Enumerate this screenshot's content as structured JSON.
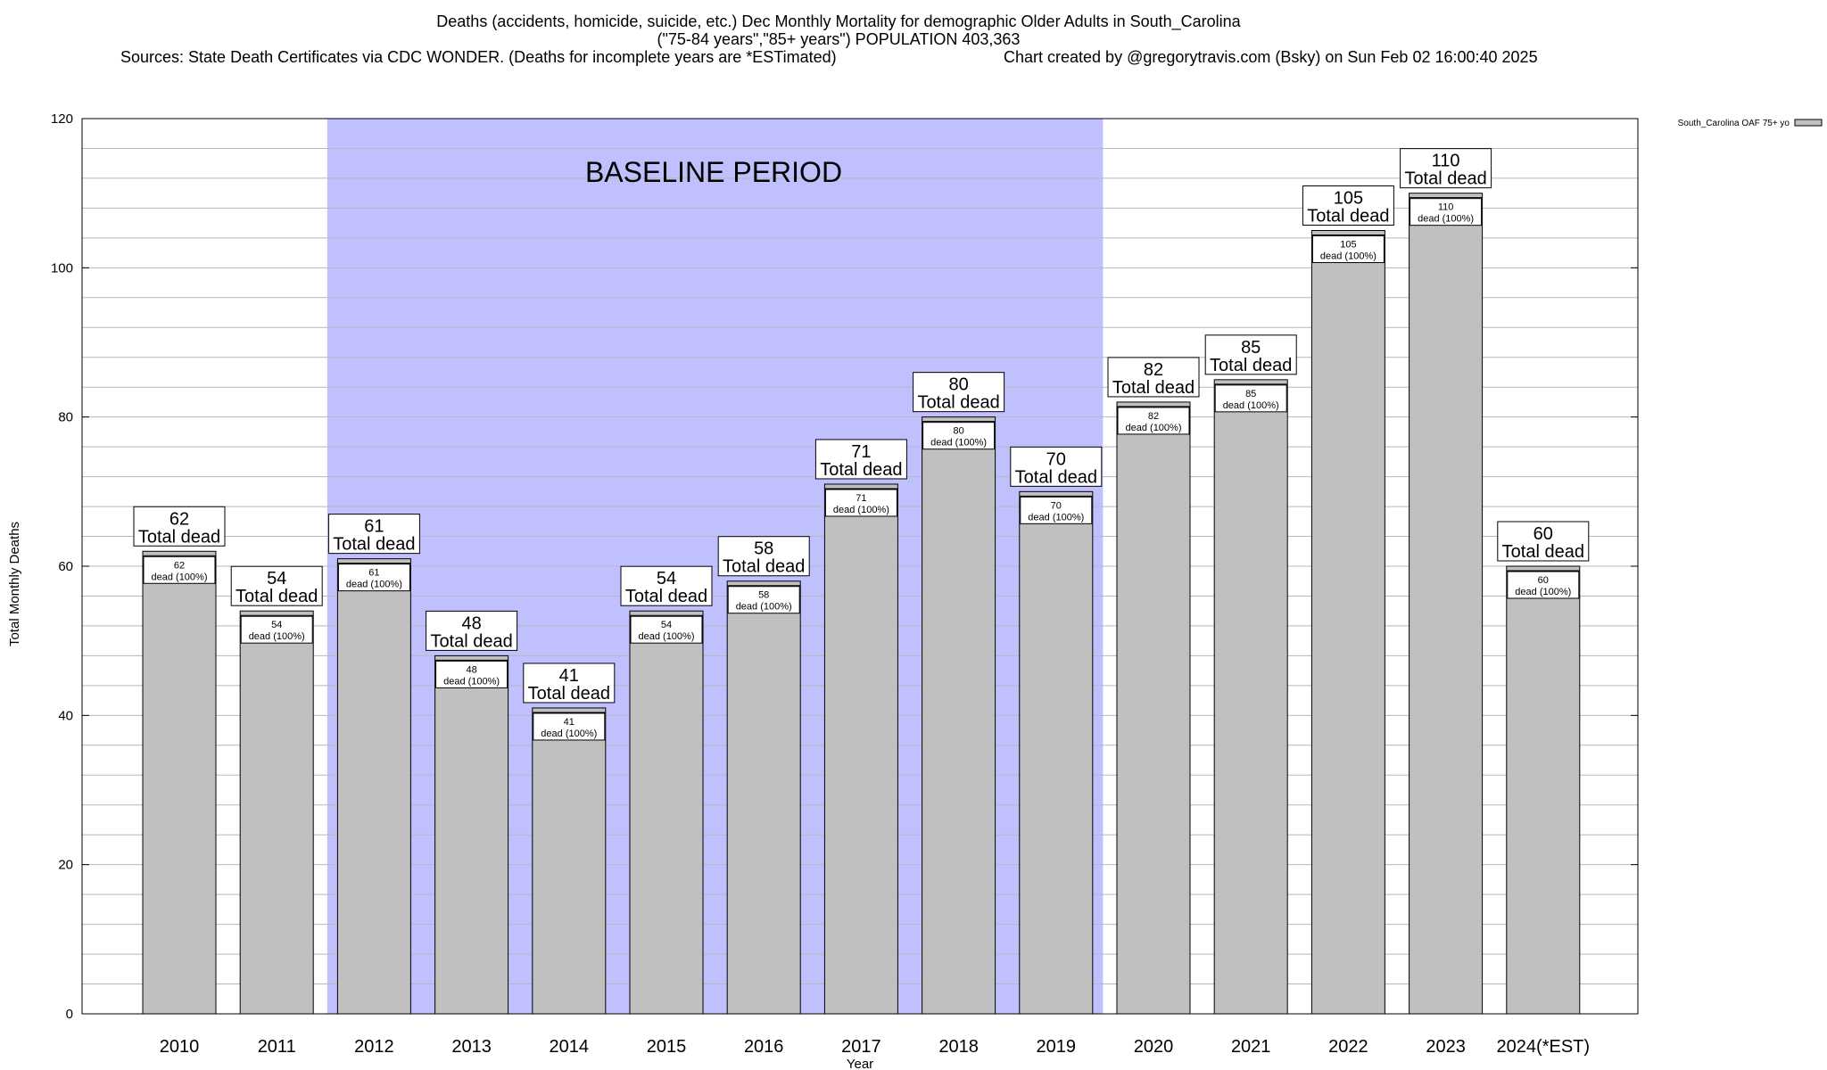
{
  "chart_data": {
    "type": "bar",
    "title_lines": [
      "Deaths (accidents, homicide, suicide, etc.) Dec Monthly Mortality for demographic Older Adults in South_Carolina",
      "(\"75-84 years\",\"85+ years\") POPULATION 403,363"
    ],
    "source_text": "Sources: State Death Certificates via CDC WONDER. (Deaths for incomplete years are *ESTimated)",
    "credit_text": "Chart created by @gregorytravis.com (Bsky) on Sun Feb 02 16:00:40 2025",
    "xlabel": "Year",
    "ylabel": "Total Monthly Deaths",
    "ylim": [
      0,
      120
    ],
    "y_ticks": [
      "0",
      "20",
      "40",
      "60",
      "80",
      "100",
      "120"
    ],
    "categories": [
      "2010",
      "2011",
      "2012",
      "2013",
      "2014",
      "2015",
      "2016",
      "2017",
      "2018",
      "2019",
      "2020",
      "2021",
      "2022",
      "2023",
      "2024(*EST)"
    ],
    "series": [
      {
        "name": "South_Carolina OAF 75+ yo",
        "values": [
          62,
          54,
          61,
          48,
          41,
          54,
          58,
          71,
          80,
          70,
          82,
          85,
          105,
          110,
          60
        ]
      }
    ],
    "top_labels": [
      "62",
      "54",
      "61",
      "48",
      "41",
      "54",
      "58",
      "71",
      "80",
      "70",
      "82",
      "85",
      "105",
      "110",
      "60"
    ],
    "total_label_text": "Total dead",
    "inner_label_text": "dead (100%)",
    "baseline": {
      "label": "BASELINE PERIOD",
      "start": "2012",
      "end": "2019",
      "color": "#c0c0ff"
    },
    "bar_color": "#c0c0c0",
    "grid": true,
    "legend_position": "top-right"
  }
}
